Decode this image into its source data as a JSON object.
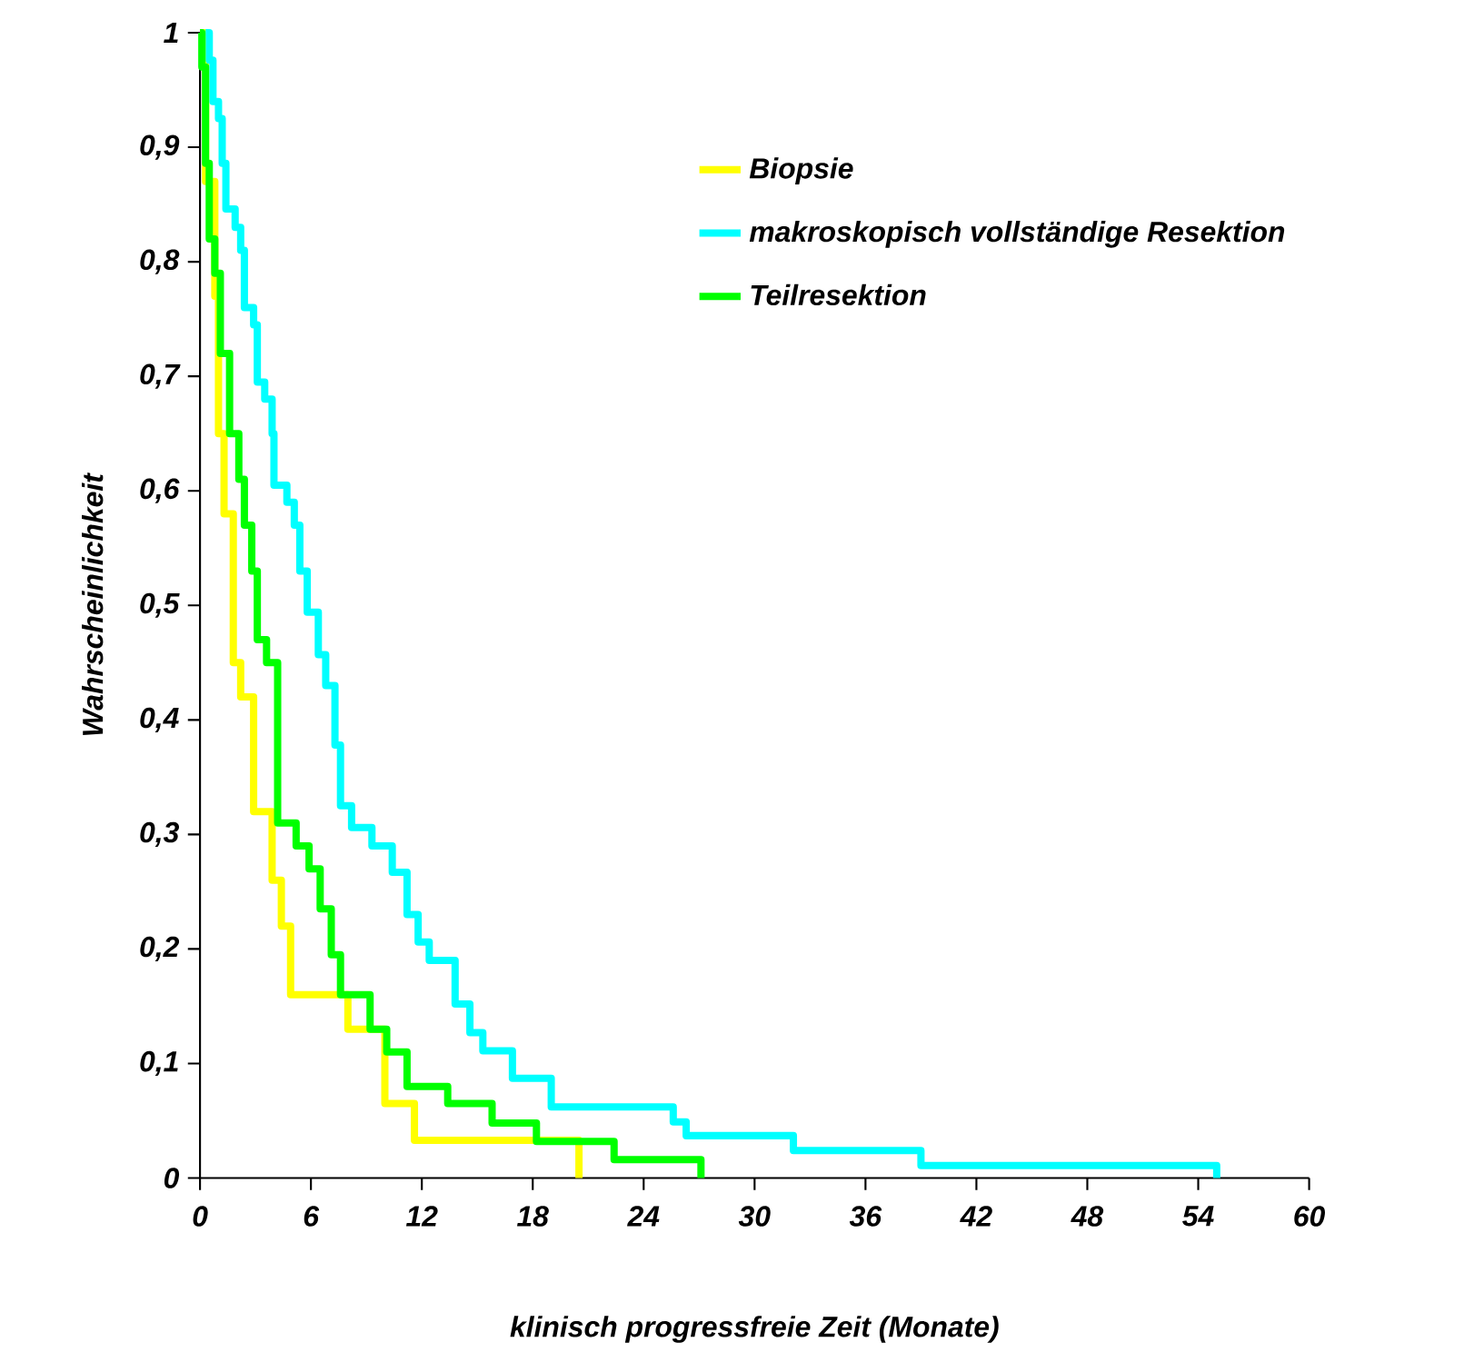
{
  "chart_data": {
    "type": "step",
    "xlabel": "klinisch progressfreie Zeit (Monate)",
    "ylabel": "Wahrscheinlichkeit",
    "xlim": [
      0,
      60
    ],
    "xticks": [
      0,
      6,
      12,
      18,
      24,
      30,
      36,
      42,
      48,
      54,
      60
    ],
    "ylim": [
      0,
      1
    ],
    "yticks": [
      0,
      {
        "value": 0.1,
        "label": "0,1"
      },
      {
        "value": 0.2,
        "label": "0,2"
      },
      {
        "value": 0.3,
        "label": "0,3"
      },
      {
        "value": 0.4,
        "label": "0,4"
      },
      {
        "value": 0.5,
        "label": "0,5"
      },
      {
        "value": 0.6,
        "label": "0,6"
      },
      {
        "value": 0.7,
        "label": "0,7"
      },
      {
        "value": 0.8,
        "label": "0,8"
      },
      {
        "value": 0.9,
        "label": "0,9"
      },
      1
    ],
    "grid": false,
    "legend": "top right",
    "marker": "none",
    "line_style": "solid",
    "series": [
      {
        "name": "Biopsie",
        "color": "#ffff00",
        "x": [
          0,
          0.3,
          0.8,
          1.0,
          1.3,
          1.8,
          2.2,
          2.9,
          3.9,
          4.4,
          4.9,
          8.0,
          10.0,
          11.6,
          20.5
        ],
        "values": [
          1,
          0.87,
          0.77,
          0.65,
          0.58,
          0.45,
          0.42,
          0.32,
          0.26,
          0.22,
          0.16,
          0.13,
          0.065,
          0.033,
          0
        ]
      },
      {
        "name": "makroskopisch vollständige Resektion",
        "color": "#00ffff",
        "x": [
          0.3,
          0.5,
          0.7,
          1.0,
          1.2,
          1.4,
          1.9,
          2.2,
          2.4,
          2.9,
          3.1,
          3.5,
          3.9,
          4.0,
          4.7,
          5.1,
          5.4,
          5.8,
          6.4,
          6.8,
          7.3,
          7.6,
          8.2,
          9.3,
          10.4,
          11.2,
          11.8,
          12.4,
          13.8,
          14.6,
          15.3,
          16.9,
          19.0,
          25.6,
          26.3,
          32.1,
          39.0,
          55.0
        ],
        "values": [
          1,
          0.976,
          0.94,
          0.925,
          0.886,
          0.846,
          0.83,
          0.81,
          0.76,
          0.745,
          0.695,
          0.68,
          0.65,
          0.605,
          0.59,
          0.57,
          0.53,
          0.494,
          0.457,
          0.43,
          0.378,
          0.325,
          0.306,
          0.29,
          0.267,
          0.23,
          0.206,
          0.19,
          0.152,
          0.127,
          0.111,
          0.087,
          0.062,
          0.049,
          0.037,
          0.024,
          0.011,
          0
        ]
      },
      {
        "name": "Teilresektion",
        "color": "#00ff00",
        "x": [
          0,
          0.1,
          0.3,
          0.5,
          0.8,
          1.1,
          1.6,
          2.1,
          2.4,
          2.8,
          3.1,
          3.6,
          4.2,
          5.2,
          5.9,
          6.5,
          7.1,
          7.6,
          9.2,
          10.1,
          11.2,
          13.4,
          15.8,
          18.2,
          22.4,
          27.1
        ],
        "values": [
          1,
          0.97,
          0.886,
          0.82,
          0.79,
          0.72,
          0.65,
          0.61,
          0.57,
          0.53,
          0.47,
          0.45,
          0.31,
          0.29,
          0.27,
          0.235,
          0.195,
          0.16,
          0.13,
          0.11,
          0.08,
          0.065,
          0.048,
          0.032,
          0.016,
          0
        ]
      }
    ]
  }
}
